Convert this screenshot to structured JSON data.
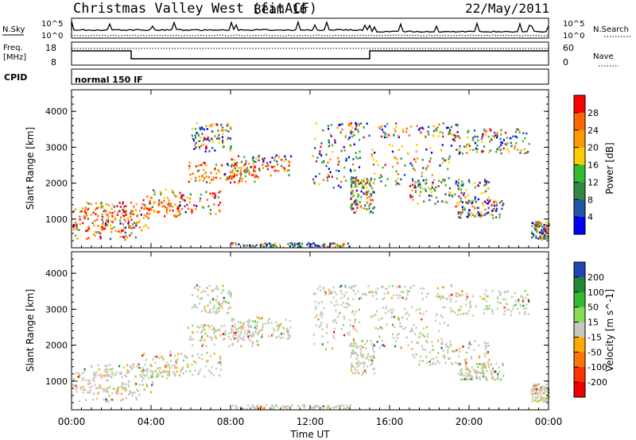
{
  "header": {
    "title": "Christmas Valley West (fitACF)",
    "beam": "Beam 16",
    "date": "22/May/2011"
  },
  "status_panels": {
    "nsky_label": "N.Sky",
    "nsearch_label": "N.Search",
    "noise_ticks": [
      "10^5",
      "10^0"
    ],
    "freq_label_top": "Freq.",
    "freq_label_bottom": "[MHz]",
    "freq_ticks": [
      "18",
      "8"
    ],
    "nave_label": "Nave",
    "nave_ticks": [
      "60",
      "0"
    ],
    "cpid_label": "CPID",
    "cpid_value": "normal 150 IF"
  },
  "chart_data": [
    {
      "type": "heatmap",
      "name": "power",
      "xlabel": "Time UT",
      "ylabel": "Slant Range [km]",
      "x_ticks": [
        "00:00",
        "04:00",
        "08:00",
        "12:00",
        "16:00",
        "20:00",
        "00:00"
      ],
      "xlim_hours": [
        0,
        24
      ],
      "ylim": [
        200,
        4600
      ],
      "y_ticks": [
        1000,
        2000,
        3000,
        4000
      ],
      "colorbar": {
        "label": "Power [dB]",
        "ticks": [
          "28",
          "24",
          "20",
          "16",
          "12",
          "8",
          "4"
        ],
        "colors": [
          "#ff0000",
          "#ff6600",
          "#ff9900",
          "#ffcc00",
          "#33bb33",
          "#338844",
          "#2255aa",
          "#0000ff"
        ]
      }
    },
    {
      "type": "heatmap",
      "name": "velocity",
      "xlabel": "Time UT",
      "ylabel": "Slant Range [km]",
      "x_ticks": [
        "00:00",
        "04:00",
        "08:00",
        "12:00",
        "16:00",
        "20:00",
        "00:00"
      ],
      "xlim_hours": [
        0,
        24
      ],
      "ylim": [
        200,
        4600
      ],
      "y_ticks": [
        1000,
        2000,
        3000,
        4000
      ],
      "colorbar": {
        "label": "Velocity [m s^-1]",
        "ticks": [
          "200",
          "100",
          "50",
          "15",
          "-15",
          "-50",
          "-100",
          "-200"
        ],
        "colors": [
          "#2244bb",
          "#228833",
          "#33bb33",
          "#88dd55",
          "#c8c8c0",
          "#ffaa00",
          "#ff7700",
          "#ff3300",
          "#ee0000"
        ]
      }
    }
  ]
}
